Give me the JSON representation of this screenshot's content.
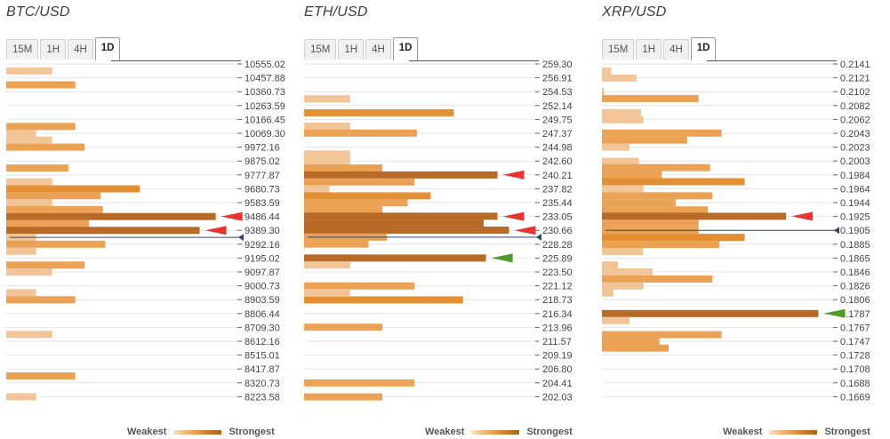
{
  "colors": {
    "weak": "#f2c599",
    "medium": "#eba255",
    "strong": "#e38f33",
    "strongest": "#b86b28",
    "sell_arrow": "#e8352f",
    "buy_arrow": "#4f9a2a",
    "marker": "#2d4a6e",
    "grid": "#e4e4e4"
  },
  "tabs": [
    "15M",
    "1H",
    "4H",
    "1D"
  ],
  "active_tab": "1D",
  "legend": {
    "weakest": "Weakest",
    "strongest": "Strongest"
  },
  "panels": [
    {
      "id": "btc",
      "title": "BTC/USD",
      "current_price": 9340.0,
      "chart_data": {
        "type": "bar",
        "orientation": "horizontal",
        "title": "BTC/USD",
        "y_axis_labels": [
          "10555.02",
          "10457.88",
          "10360.73",
          "10263.59",
          "10166.45",
          "10069.30",
          "9972.16",
          "9875.02",
          "9777.87",
          "9680.73",
          "9583.59",
          "9486.44",
          "9389.30",
          "9292.16",
          "9195.02",
          "9097.87",
          "9000.73",
          "8903.59",
          "8806.44",
          "8709.30",
          "8612.16",
          "8515.01",
          "8417.87",
          "8320.73",
          "8223.58"
        ],
        "ylim": [
          8223.58,
          10555.02
        ],
        "strength_scale": [
          0,
          10
        ],
        "bars": [
          {
            "price": 10506.0,
            "strength": 2
          },
          {
            "price": 10409.0,
            "strength": 3
          },
          {
            "price": 10117.0,
            "strength": 3
          },
          {
            "price": 10069.0,
            "strength": 1.3
          },
          {
            "price": 10021.0,
            "strength": 2
          },
          {
            "price": 9972.0,
            "strength": 3.4
          },
          {
            "price": 9826.0,
            "strength": 2.7
          },
          {
            "price": 9729.0,
            "strength": 2
          },
          {
            "price": 9680.0,
            "strength": 5.8
          },
          {
            "price": 9632.0,
            "strength": 4.1
          },
          {
            "price": 9583.0,
            "strength": 2
          },
          {
            "price": 9535.0,
            "strength": 4.2
          },
          {
            "price": 9486.0,
            "strength": 9.1
          },
          {
            "price": 9437.0,
            "strength": 3.6
          },
          {
            "price": 9389.0,
            "strength": 8.4
          },
          {
            "price": 9340.0,
            "strength": 1.3
          },
          {
            "price": 9292.0,
            "strength": 4.3
          },
          {
            "price": 9243.0,
            "strength": 1.3
          },
          {
            "price": 9146.0,
            "strength": 3.4
          },
          {
            "price": 9097.0,
            "strength": 2
          },
          {
            "price": 8952.0,
            "strength": 1.3
          },
          {
            "price": 8903.0,
            "strength": 3
          },
          {
            "price": 8660.0,
            "strength": 2
          },
          {
            "price": 8369.0,
            "strength": 3
          },
          {
            "price": 8223.0,
            "strength": 1.3
          }
        ],
        "arrows": [
          {
            "price": 9486.44,
            "type": "sell"
          },
          {
            "price": 9389.3,
            "type": "sell"
          }
        ]
      }
    },
    {
      "id": "eth",
      "title": "ETH/USD",
      "current_price": 229.5,
      "chart_data": {
        "type": "bar",
        "orientation": "horizontal",
        "title": "ETH/USD",
        "y_axis_labels": [
          "259.30",
          "256.91",
          "254.53",
          "252.14",
          "249.75",
          "247.37",
          "244.98",
          "242.60",
          "240.21",
          "237.82",
          "235.44",
          "233.05",
          "230.66",
          "228.28",
          "225.89",
          "223.50",
          "221.12",
          "218.73",
          "216.34",
          "213.96",
          "211.57",
          "209.19",
          "206.80",
          "204.41",
          "202.03"
        ],
        "ylim": [
          202.03,
          259.3
        ],
        "strength_scale": [
          0,
          10
        ],
        "bars": [
          {
            "price": 253.3,
            "strength": 2
          },
          {
            "price": 250.9,
            "strength": 6.5
          },
          {
            "price": 248.6,
            "strength": 2
          },
          {
            "price": 247.4,
            "strength": 4.9
          },
          {
            "price": 243.8,
            "strength": 2
          },
          {
            "price": 242.6,
            "strength": 2
          },
          {
            "price": 241.4,
            "strength": 3.4
          },
          {
            "price": 240.2,
            "strength": 8.4
          },
          {
            "price": 239.0,
            "strength": 4.8
          },
          {
            "price": 237.8,
            "strength": 1.1
          },
          {
            "price": 236.6,
            "strength": 5.5
          },
          {
            "price": 235.4,
            "strength": 4.5
          },
          {
            "price": 234.2,
            "strength": 3.4
          },
          {
            "price": 233.1,
            "strength": 8.4
          },
          {
            "price": 231.9,
            "strength": 7.8
          },
          {
            "price": 230.7,
            "strength": 8.9
          },
          {
            "price": 229.5,
            "strength": 3.6
          },
          {
            "price": 228.3,
            "strength": 2.8
          },
          {
            "price": 225.9,
            "strength": 7.9
          },
          {
            "price": 224.7,
            "strength": 2
          },
          {
            "price": 221.1,
            "strength": 4.8
          },
          {
            "price": 220.0,
            "strength": 2
          },
          {
            "price": 218.7,
            "strength": 6.9
          },
          {
            "price": 214.0,
            "strength": 3.4
          },
          {
            "price": 204.4,
            "strength": 4.8
          },
          {
            "price": 202.0,
            "strength": 3.4
          }
        ],
        "arrows": [
          {
            "price": 240.21,
            "type": "sell"
          },
          {
            "price": 233.05,
            "type": "sell"
          },
          {
            "price": 230.66,
            "type": "sell"
          },
          {
            "price": 225.89,
            "type": "buy"
          }
        ]
      }
    },
    {
      "id": "xrp",
      "title": "XRP/USD",
      "current_price": 0.1905,
      "chart_data": {
        "type": "bar",
        "orientation": "horizontal",
        "title": "XRP/USD",
        "y_axis_labels": [
          "0.2141",
          "0.2121",
          "0.2102",
          "0.2082",
          "0.2062",
          "0.2043",
          "0.2023",
          "0.2003",
          "0.1984",
          "0.1964",
          "0.1944",
          "0.1925",
          "0.1905",
          "0.1885",
          "0.1865",
          "0.1846",
          "0.1826",
          "0.1806",
          "0.1787",
          "0.1767",
          "0.1747",
          "0.1728",
          "0.1708",
          "0.1688",
          "0.1669"
        ],
        "ylim": [
          0.1669,
          0.2141
        ],
        "strength_scale": [
          0,
          10
        ],
        "bars": [
          {
            "price": 0.2131,
            "strength": 0.4
          },
          {
            "price": 0.2121,
            "strength": 1.5
          },
          {
            "price": 0.2102,
            "strength": 0.1
          },
          {
            "price": 0.2092,
            "strength": 4.2
          },
          {
            "price": 0.2072,
            "strength": 1.7
          },
          {
            "price": 0.2062,
            "strength": 1.8
          },
          {
            "price": 0.2043,
            "strength": 5.2
          },
          {
            "price": 0.2033,
            "strength": 3.7
          },
          {
            "price": 0.2023,
            "strength": 1.2
          },
          {
            "price": 0.2003,
            "strength": 1.6
          },
          {
            "price": 0.1994,
            "strength": 4.7
          },
          {
            "price": 0.1984,
            "strength": 2.6
          },
          {
            "price": 0.1974,
            "strength": 6.2
          },
          {
            "price": 0.1964,
            "strength": 1.8
          },
          {
            "price": 0.1954,
            "strength": 4.8
          },
          {
            "price": 0.1944,
            "strength": 3.2
          },
          {
            "price": 0.1934,
            "strength": 4.6
          },
          {
            "price": 0.1925,
            "strength": 8.0
          },
          {
            "price": 0.1915,
            "strength": 4.2
          },
          {
            "price": 0.1905,
            "strength": 4.2
          },
          {
            "price": 0.1895,
            "strength": 6.2
          },
          {
            "price": 0.1885,
            "strength": 5.1
          },
          {
            "price": 0.1875,
            "strength": 1.8
          },
          {
            "price": 0.1856,
            "strength": 0.7
          },
          {
            "price": 0.1846,
            "strength": 2.2
          },
          {
            "price": 0.1836,
            "strength": 4.8
          },
          {
            "price": 0.1826,
            "strength": 1.8
          },
          {
            "price": 0.1816,
            "strength": 0.5
          },
          {
            "price": 0.1787,
            "strength": 9.4
          },
          {
            "price": 0.1777,
            "strength": 1.2
          },
          {
            "price": 0.1757,
            "strength": 5.2
          },
          {
            "price": 0.1747,
            "strength": 2.5
          },
          {
            "price": 0.1738,
            "strength": 2.9
          }
        ],
        "arrows": [
          {
            "price": 0.1925,
            "type": "sell"
          },
          {
            "price": 0.1787,
            "type": "buy"
          }
        ]
      }
    }
  ]
}
